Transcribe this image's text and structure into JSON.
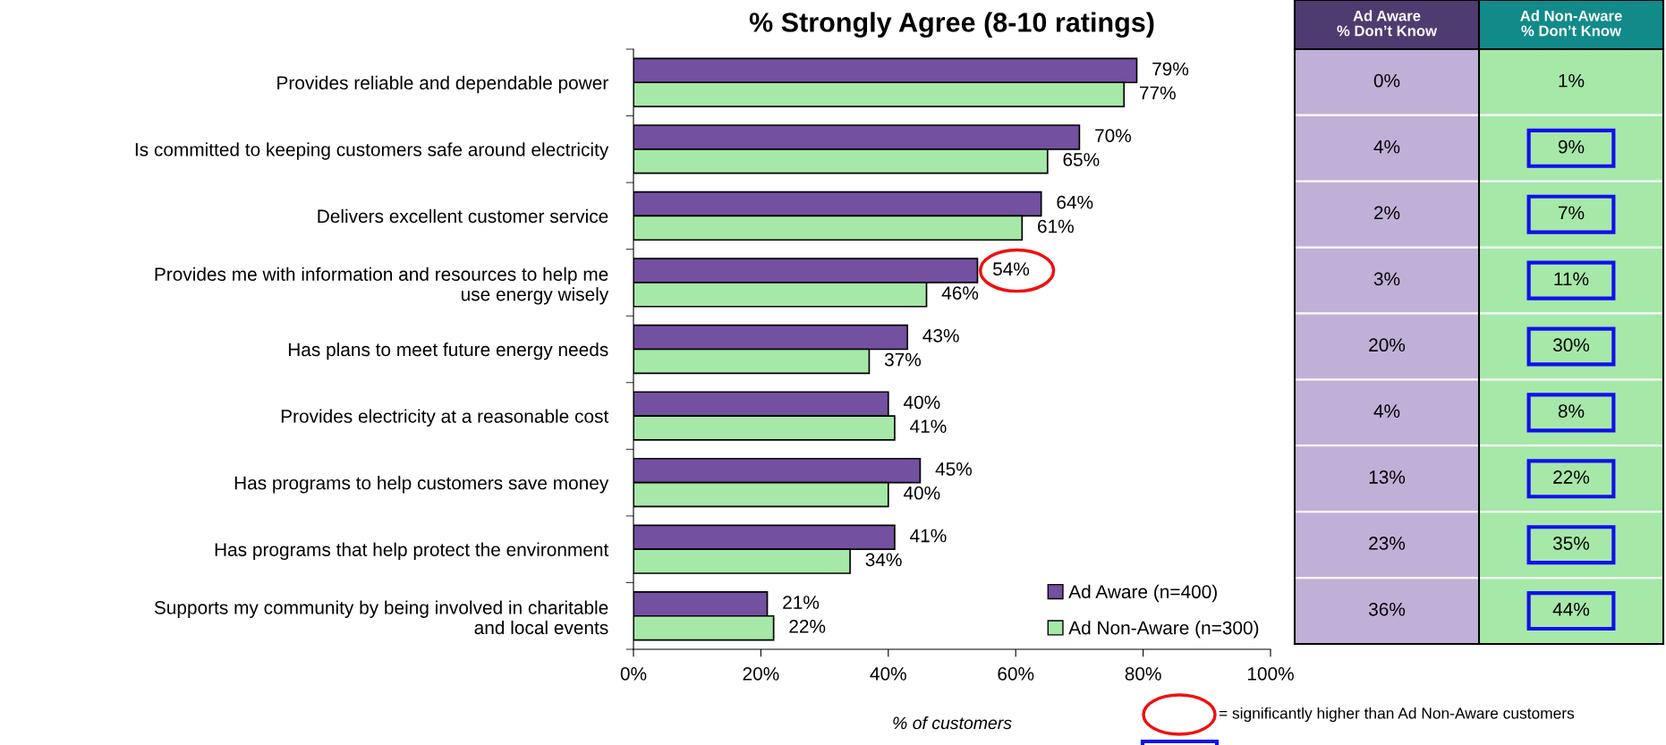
{
  "chart_data": [
    {
      "type": "bar",
      "orientation": "horizontal",
      "title": "% Strongly Agree (8-10 ratings)",
      "xlabel": "% of customers",
      "categories": [
        "Provides reliable and dependable power",
        "Is committed to keeping customers safe around electricity",
        "Delivers excellent customer service",
        "Provides me with information and resources to help me\nuse energy wisely",
        "Has plans to meet future energy needs",
        "Provides electricity at a reasonable cost",
        "Has programs to help customers save money",
        "Has programs that help protect the environment",
        "Supports my community by being involved in charitable\nand local events"
      ],
      "series": [
        {
          "name": "Ad Aware (n=400)",
          "color": "#7350a0",
          "values": [
            79,
            70,
            64,
            54,
            43,
            40,
            45,
            41,
            21
          ],
          "value_labels": [
            "79%",
            "70%",
            "64%",
            null,
            "43%",
            "40%",
            "45%",
            "41%",
            "21%"
          ]
        },
        {
          "name": "Ad Non-Aware (n=300)",
          "color": "#a6e8a8",
          "values": [
            77,
            65,
            61,
            46,
            37,
            41,
            40,
            34,
            22
          ],
          "value_labels": [
            "77%",
            "65%",
            "61%",
            "46%",
            "37%",
            "41%",
            "40%",
            "34%",
            "22%"
          ]
        }
      ],
      "xlim": [
        0,
        100
      ],
      "xticks": [
        {
          "value": 0,
          "label": "0%"
        },
        {
          "value": 20,
          "label": "20%"
        },
        {
          "value": 40,
          "label": "40%"
        },
        {
          "value": 60,
          "label": "60%"
        },
        {
          "value": 80,
          "label": "80%"
        },
        {
          "value": 100,
          "label": "100%"
        }
      ],
      "legend": "bottom right",
      "grid": false,
      "annotations": [
        {
          "text": "54%",
          "x": 54,
          "y": "Provides me with information and resources to help me\nuse energy wisely"
        },
        "= significantly higher than Ad Non-Aware customers"
      ]
    },
    {
      "type": "heatmap",
      "categories": [
        "Ad Aware\n% Don’t Know",
        "Ad Non-Aware\n% Don’t Know"
      ],
      "y_categories": [
        null,
        null,
        null,
        null,
        null,
        null,
        null,
        null,
        null
      ],
      "colors": [
        "#c0b0d8",
        "#a6e8a8"
      ],
      "cells": [
        [
          0,
          1
        ],
        [
          4,
          9
        ],
        [
          2,
          7
        ],
        [
          3,
          11
        ],
        [
          20,
          30
        ],
        [
          4,
          8
        ],
        [
          13,
          22
        ],
        [
          23,
          35
        ],
        [
          36,
          44
        ]
      ],
      "cell_labels": [
        [
          "0%",
          "1%"
        ],
        [
          "4%",
          "9%"
        ],
        [
          "2%",
          "7%"
        ],
        [
          "3%",
          "11%"
        ],
        [
          "20%",
          "30%"
        ],
        [
          "4%",
          "8%"
        ],
        [
          "13%",
          "22%"
        ],
        [
          "23%",
          "35%"
        ],
        [
          "36%",
          "44%"
        ]
      ]
    }
  ]
}
